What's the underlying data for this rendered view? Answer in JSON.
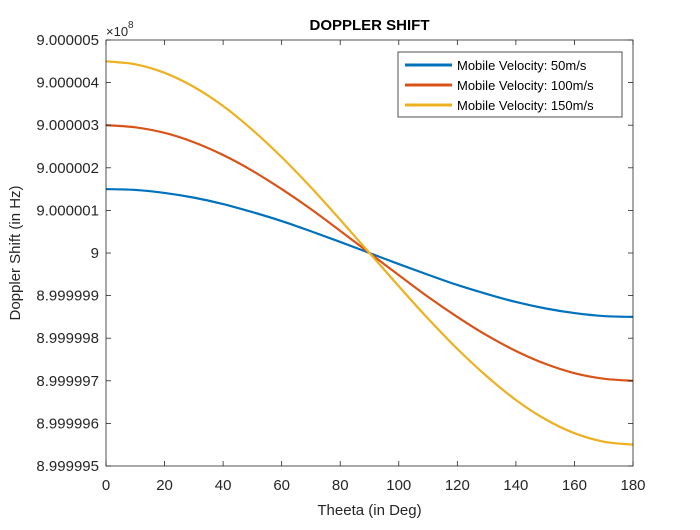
{
  "chart_data": {
    "type": "line",
    "title": "DOPPLER SHIFT",
    "xlabel": "Theeta (in Deg)",
    "ylabel": "Doppler Shift (in Hz)",
    "y_multiplier_label": "×10",
    "y_multiplier_exponent": "8",
    "xlim": [
      0,
      180
    ],
    "ylim": [
      8.999995,
      9.000005
    ],
    "x_ticks": [
      0,
      20,
      40,
      60,
      80,
      100,
      120,
      140,
      160,
      180
    ],
    "x_tick_labels": [
      "0",
      "20",
      "40",
      "60",
      "80",
      "100",
      "120",
      "140",
      "160",
      "180"
    ],
    "y_ticks": [
      8.999995,
      8.999996,
      8.999997,
      8.999998,
      8.999999,
      9,
      9.000001,
      9.000002,
      9.000003,
      9.000004,
      9.000005
    ],
    "y_tick_labels": [
      "8.999995",
      "8.999996",
      "8.999997",
      "8.999998",
      "8.999999",
      "9",
      "9.000001",
      "9.000002",
      "9.000003",
      "9.000004",
      "9.000005"
    ],
    "grid": false,
    "legend_position": "top-right",
    "x": [
      0,
      10,
      20,
      30,
      40,
      50,
      60,
      70,
      80,
      90,
      100,
      110,
      120,
      130,
      140,
      150,
      160,
      170,
      180
    ],
    "series": [
      {
        "name": "Mobile Velocity: 50m/s",
        "color": "#0072BD",
        "values": [
          9.0000015,
          9.00000148,
          9.00000141,
          9.0000013,
          9.00000115,
          9.00000096,
          9.00000075,
          9.00000051,
          9.00000026,
          9.0,
          8.99999974,
          8.99999949,
          8.99999925,
          8.99999904,
          8.99999885,
          8.9999987,
          8.99999859,
          8.99999852,
          8.9999985
        ]
      },
      {
        "name": "Mobile Velocity: 100m/s",
        "color": "#D95319",
        "values": [
          9.000003,
          9.00000295,
          9.00000282,
          9.0000026,
          9.0000023,
          9.00000193,
          9.0000015,
          9.00000103,
          9.00000052,
          9.0,
          8.99999948,
          8.99999897,
          8.9999985,
          8.99999807,
          8.9999977,
          8.9999974,
          8.99999718,
          8.99999705,
          8.999997
        ]
      },
      {
        "name": "Mobile Velocity: 150m/s",
        "color": "#EDB120",
        "values": [
          9.0000045,
          9.00000443,
          9.00000423,
          9.0000039,
          9.00000345,
          9.00000289,
          9.00000225,
          9.00000154,
          9.00000078,
          9.0,
          8.99999922,
          8.99999846,
          8.99999775,
          8.99999711,
          8.99999655,
          8.9999961,
          8.99999577,
          8.99999557,
          8.9999955
        ]
      }
    ]
  }
}
